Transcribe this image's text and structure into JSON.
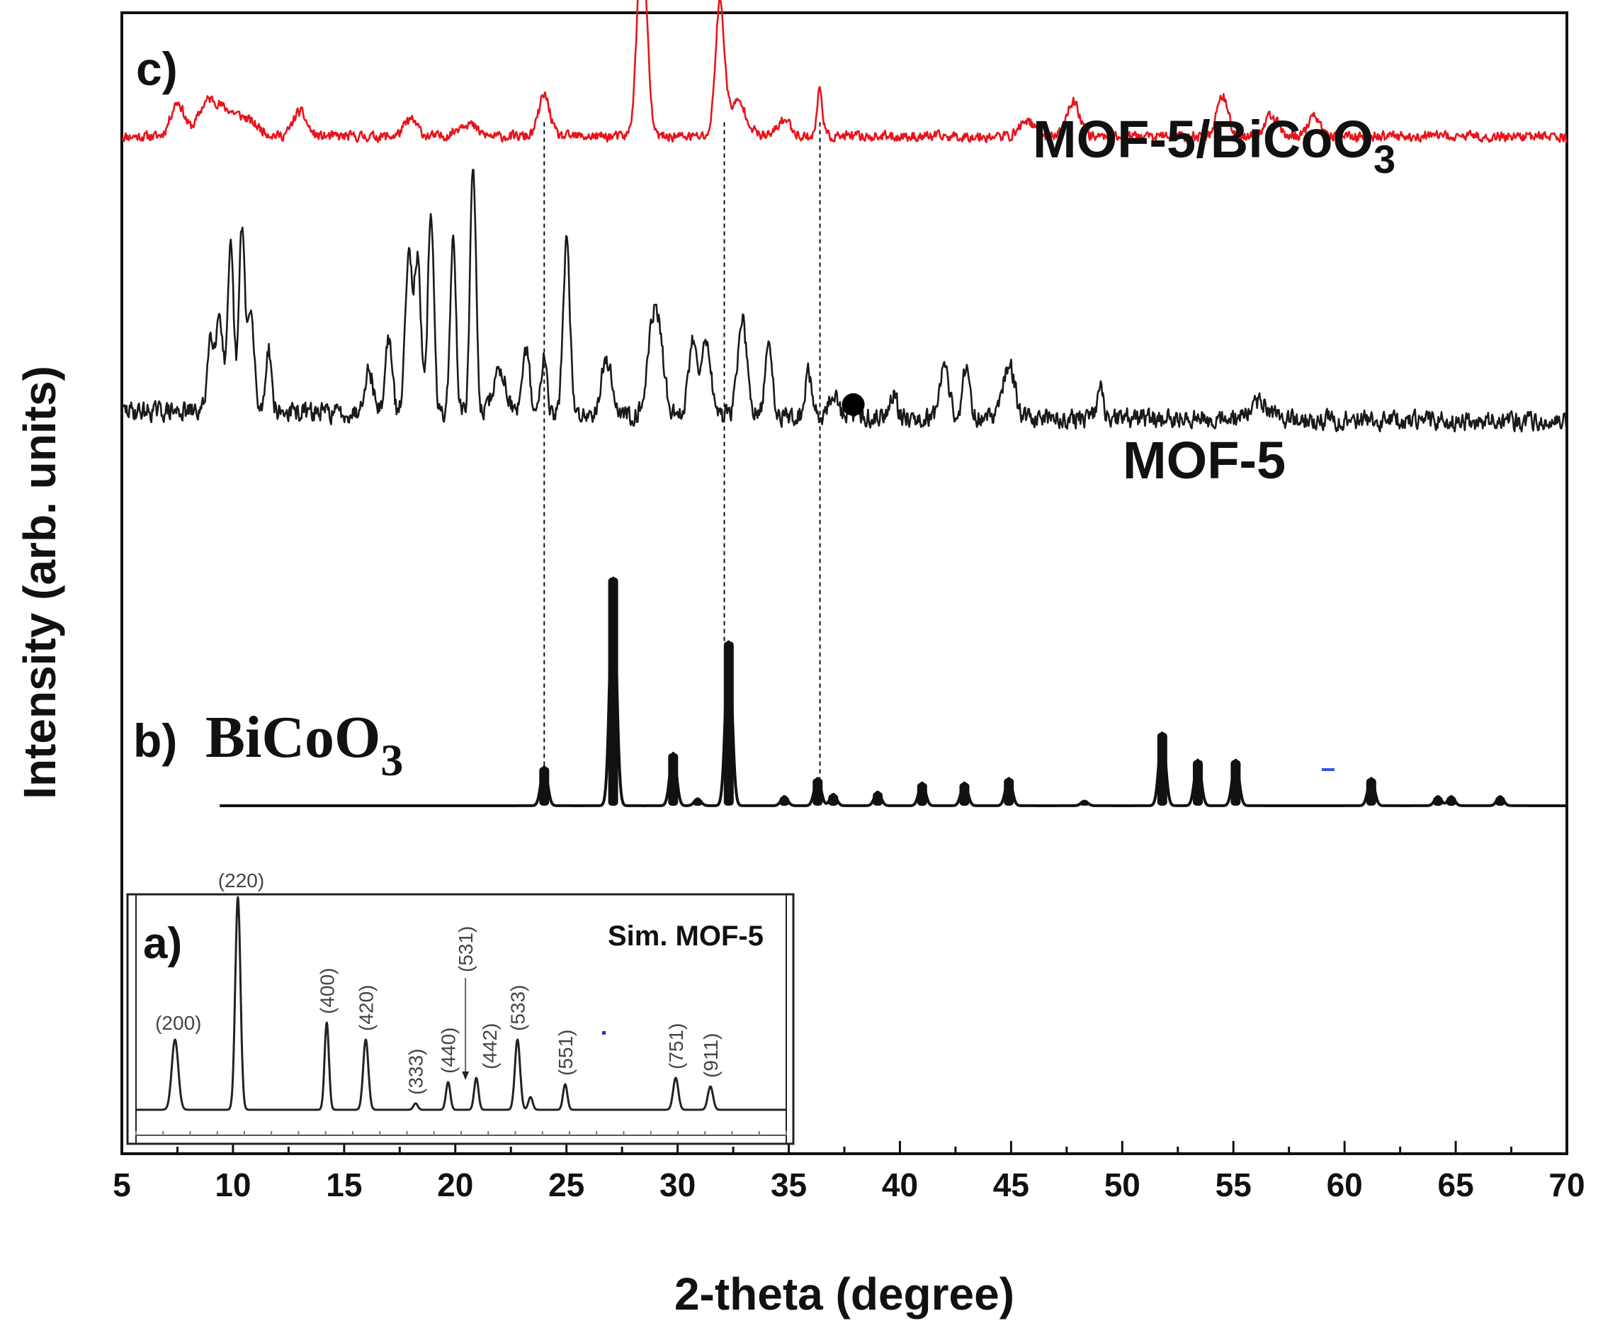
{
  "chart_data": {
    "type": "line",
    "title": "",
    "xlabel": "2-theta (degree)",
    "ylabel": "Intensity (arb. units)",
    "xlim": [
      5,
      70
    ],
    "xticks": [
      5,
      10,
      15,
      20,
      25,
      30,
      35,
      40,
      45,
      50,
      55,
      60,
      65,
      70
    ],
    "panel_labels": {
      "c": "c)",
      "b": "b)",
      "a": "a)"
    },
    "series": [
      {
        "name": "MOF-5/BiCoO3",
        "label_main": "MOF-5/BiCoO",
        "label_sub": "3",
        "color": "#e8141b",
        "offset": 0.87,
        "scale": 0.12,
        "baseline": 0.18,
        "noise": 0.05,
        "noise_seed": 11,
        "peaks": [
          [
            7.5,
            0.25,
            0.3
          ],
          [
            8.8,
            0.2,
            0.4
          ],
          [
            9.5,
            0.15,
            0.5
          ],
          [
            10.5,
            0.12,
            0.6
          ],
          [
            13,
            0.18,
            0.3
          ],
          [
            18,
            0.12,
            0.3
          ],
          [
            20.5,
            0.1,
            0.4
          ],
          [
            24,
            0.3,
            0.25
          ],
          [
            28.4,
            1.45,
            0.22
          ],
          [
            31.9,
            0.95,
            0.2
          ],
          [
            32.7,
            0.25,
            0.4
          ],
          [
            34.8,
            0.12,
            0.3
          ],
          [
            36.4,
            0.35,
            0.12
          ],
          [
            45.7,
            0.12,
            0.3
          ],
          [
            47.8,
            0.25,
            0.3
          ],
          [
            54.5,
            0.3,
            0.25
          ],
          [
            56.7,
            0.15,
            0.3
          ],
          [
            58.6,
            0.15,
            0.25
          ]
        ]
      },
      {
        "name": "MOF-5",
        "label_main": "MOF-5",
        "label_sub": "",
        "color": "#1a1a1a",
        "offset": 0.63,
        "scale": 0.19,
        "baseline": 0.06,
        "noise": 0.06,
        "noise_seed": 29,
        "peaks": [
          [
            9,
            0.35,
            0.15
          ],
          [
            9.4,
            0.45,
            0.15
          ],
          [
            9.9,
            0.75,
            0.13
          ],
          [
            10.4,
            0.85,
            0.13
          ],
          [
            10.8,
            0.45,
            0.15
          ],
          [
            11.6,
            0.3,
            0.13
          ],
          [
            16.1,
            0.2,
            0.2
          ],
          [
            17,
            0.35,
            0.15
          ],
          [
            17.9,
            0.75,
            0.15
          ],
          [
            18.3,
            0.7,
            0.15
          ],
          [
            18.9,
            0.95,
            0.13
          ],
          [
            19.9,
            0.8,
            0.13
          ],
          [
            20.8,
            1.15,
            0.13
          ],
          [
            22,
            0.2,
            0.3
          ],
          [
            23.2,
            0.3,
            0.15
          ],
          [
            24,
            0.3,
            0.13
          ],
          [
            25,
            0.8,
            0.15
          ],
          [
            26.8,
            0.25,
            0.25
          ],
          [
            29,
            0.5,
            0.3
          ],
          [
            30.7,
            0.35,
            0.2
          ],
          [
            31.3,
            0.35,
            0.2
          ],
          [
            32.9,
            0.45,
            0.2
          ],
          [
            34.1,
            0.35,
            0.15
          ],
          [
            35.9,
            0.2,
            0.15
          ],
          [
            37,
            0.1,
            0.2
          ],
          [
            39.7,
            0.12,
            0.15
          ],
          [
            42,
            0.25,
            0.2
          ],
          [
            43,
            0.25,
            0.15
          ],
          [
            44.9,
            0.25,
            0.25
          ],
          [
            49,
            0.15,
            0.12
          ],
          [
            56.2,
            0.08,
            0.4
          ]
        ]
      },
      {
        "name": "BiCoO3",
        "label_main": "BiCoO",
        "label_sub": "3",
        "color": "#111111",
        "offset": 0.305,
        "scale": 0.2,
        "baseline": 0.0,
        "noise": 0.0,
        "noise_seed": 1,
        "x_start": 9.4,
        "peaks": [
          [
            24,
            0.17,
            0.15
          ],
          [
            27.1,
            1.0,
            0.15
          ],
          [
            29.8,
            0.23,
            0.15
          ],
          [
            30.9,
            0.03,
            0.15
          ],
          [
            32.3,
            0.72,
            0.15
          ],
          [
            34.8,
            0.04,
            0.15
          ],
          [
            36.3,
            0.12,
            0.15
          ],
          [
            37,
            0.05,
            0.15
          ],
          [
            39,
            0.06,
            0.15
          ],
          [
            41,
            0.1,
            0.15
          ],
          [
            42.9,
            0.1,
            0.15
          ],
          [
            44.9,
            0.12,
            0.15
          ],
          [
            48.3,
            0.02,
            0.15
          ],
          [
            51.8,
            0.32,
            0.15
          ],
          [
            53.4,
            0.2,
            0.15
          ],
          [
            55.1,
            0.2,
            0.15
          ],
          [
            61.2,
            0.12,
            0.15
          ],
          [
            64.2,
            0.04,
            0.15
          ],
          [
            64.8,
            0.04,
            0.15
          ],
          [
            67,
            0.04,
            0.15
          ]
        ]
      }
    ],
    "dashed_guides": [
      24,
      32.1,
      36.4
    ],
    "marker_point": {
      "x": 37.9,
      "shape": "filled-circle"
    },
    "inset": {
      "label": "Sim. MOF-5",
      "xlim": [
        5,
        35
      ],
      "peaks": [
        [
          6.8,
          0.33,
          0.15
        ],
        [
          9.7,
          1.0,
          0.12
        ],
        [
          13.8,
          0.41,
          0.1
        ],
        [
          15.6,
          0.33,
          0.12
        ],
        [
          17.9,
          0.03,
          0.1
        ],
        [
          19.4,
          0.13,
          0.1
        ],
        [
          20.7,
          0.15,
          0.1
        ],
        [
          22.6,
          0.33,
          0.12
        ],
        [
          23.2,
          0.06,
          0.1
        ],
        [
          24.8,
          0.12,
          0.1
        ],
        [
          29.9,
          0.15,
          0.12
        ],
        [
          31.5,
          0.11,
          0.12
        ]
      ],
      "annotations": [
        {
          "x": 6.8,
          "text": "(200)",
          "rotated": false
        },
        {
          "x": 9.7,
          "text": "(220)",
          "rotated": false
        },
        {
          "x": 13.8,
          "text": "(400)",
          "rotated": true
        },
        {
          "x": 15.6,
          "text": "(420)",
          "rotated": true
        },
        {
          "x": 17.9,
          "text": "(333)",
          "rotated": true
        },
        {
          "x": 19.4,
          "text": "(440)",
          "rotated": true
        },
        {
          "x": 20.2,
          "text": "(531)",
          "rotated": true
        },
        {
          "x": 21.3,
          "text": "(442)",
          "rotated": true
        },
        {
          "x": 22.6,
          "text": "(533)",
          "rotated": true
        },
        {
          "x": 24.8,
          "text": "(551)",
          "rotated": true
        },
        {
          "x": 29.9,
          "text": "(751)",
          "rotated": true
        },
        {
          "x": 31.5,
          "text": "(911)",
          "rotated": true
        }
      ]
    }
  }
}
